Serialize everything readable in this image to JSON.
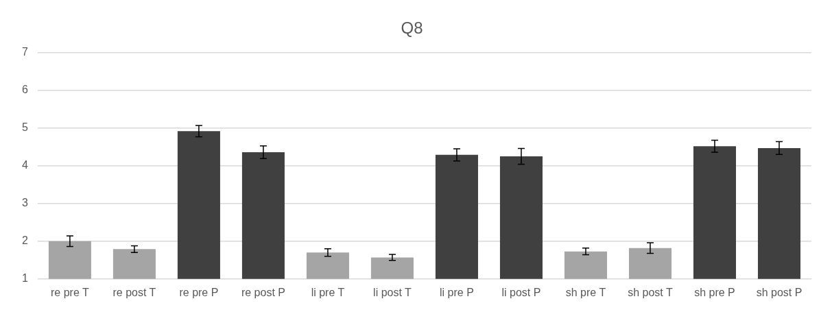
{
  "chart_data": {
    "type": "bar",
    "title": "Q8",
    "categories": [
      "re pre T",
      "re post T",
      "re pre P",
      "re post P",
      "li pre T",
      "li post T",
      "li pre P",
      "li post P",
      "sh pre T",
      "sh post T",
      "sh pre P",
      "sh post P"
    ],
    "values": [
      2.0,
      1.79,
      4.92,
      4.36,
      1.7,
      1.57,
      4.29,
      4.25,
      1.73,
      1.82,
      4.52,
      4.47
    ],
    "errors": [
      0.14,
      0.09,
      0.15,
      0.17,
      0.1,
      0.08,
      0.16,
      0.21,
      0.09,
      0.14,
      0.16,
      0.17
    ],
    "colors": [
      "#a5a5a5",
      "#a5a5a5",
      "#404040",
      "#404040",
      "#a5a5a5",
      "#a5a5a5",
      "#404040",
      "#404040",
      "#a5a5a5",
      "#a5a5a5",
      "#404040",
      "#404040"
    ],
    "ylim": [
      1,
      7
    ],
    "yticks": [
      1,
      2,
      3,
      4,
      5,
      6,
      7
    ],
    "grid": "y",
    "legend": false
  }
}
